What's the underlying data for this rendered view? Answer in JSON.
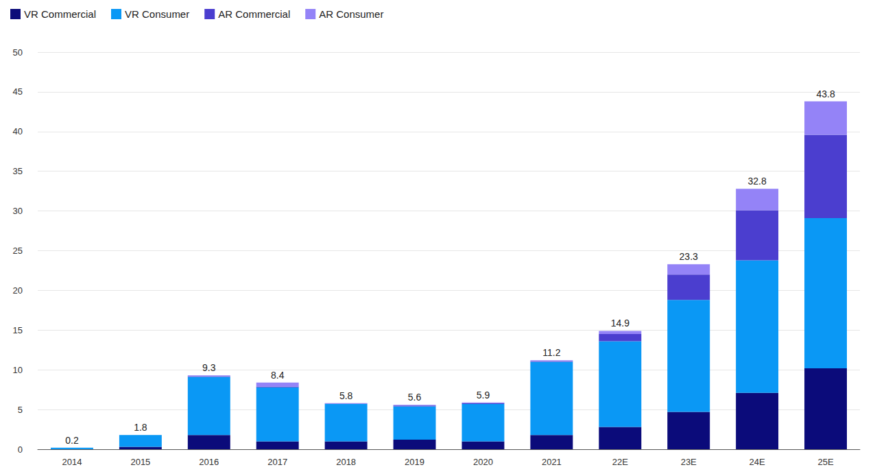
{
  "chart_data": {
    "type": "bar",
    "stacked": true,
    "grid": true,
    "legend": "upper left",
    "categories": [
      "2014",
      "2015",
      "2016",
      "2017",
      "2018",
      "2019",
      "2020",
      "2021",
      "22E",
      "23E",
      "24E",
      "25E"
    ],
    "series": [
      {
        "name": "VR Commercial",
        "color": "#0b0b7a",
        "values": [
          0,
          0.3,
          1.8,
          1.0,
          1.0,
          1.2,
          1.0,
          1.8,
          2.8,
          4.7,
          7.1,
          10.2
        ]
      },
      {
        "name": "VR Consumer",
        "color": "#0a98f5",
        "values": [
          0.2,
          1.5,
          7.3,
          6.8,
          4.7,
          4.2,
          4.7,
          9.2,
          10.8,
          14.1,
          16.7,
          18.9
        ]
      },
      {
        "name": "AR Commercial",
        "color": "#4b3ecf",
        "values": [
          0,
          0,
          0.1,
          0.1,
          0.05,
          0.1,
          0.1,
          0.1,
          0.9,
          3.2,
          6.3,
          10.5
        ]
      },
      {
        "name": "AR Consumer",
        "color": "#9483f7",
        "values": [
          0,
          0,
          0.1,
          0.5,
          0.05,
          0.1,
          0.1,
          0.1,
          0.4,
          1.3,
          2.7,
          4.2
        ]
      }
    ],
    "totals": [
      0.2,
      1.8,
      9.3,
      8.4,
      5.8,
      5.6,
      5.9,
      11.2,
      14.9,
      23.3,
      32.8,
      43.8
    ],
    "ylim": [
      0,
      50
    ],
    "yticks": [
      0,
      5,
      10,
      15,
      20,
      25,
      30,
      35,
      40,
      45,
      50
    ]
  }
}
